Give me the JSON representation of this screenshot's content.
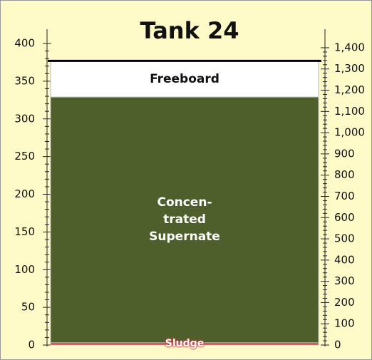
{
  "chart_data": {
    "type": "bar",
    "title": "Tank 24",
    "series": [
      {
        "name": "Sludge",
        "color": "#c9403f",
        "values": [
          3
        ]
      },
      {
        "name": "Concen-\ntrated\nSupernate",
        "color": "#4f5f2b",
        "values": [
          326
        ]
      },
      {
        "name": "Freeboard",
        "color": "#ffffff",
        "values": [
          48
        ]
      }
    ],
    "ylim": [
      0,
      400
    ],
    "yticks": [
      0,
      50,
      100,
      150,
      200,
      250,
      300,
      350,
      400
    ],
    "y2lim": [
      0,
      1420
    ],
    "y2ticks": [
      0,
      100,
      200,
      300,
      400,
      500,
      600,
      700,
      800,
      900,
      {
        "value": 1000,
        "label": "1,000"
      },
      {
        "value": 1100,
        "label": "1,100"
      },
      {
        "value": 1200,
        "label": "1,200"
      },
      {
        "value": 1300,
        "label": "1,300"
      },
      {
        "value": 1400,
        "label": "1,400"
      }
    ]
  }
}
